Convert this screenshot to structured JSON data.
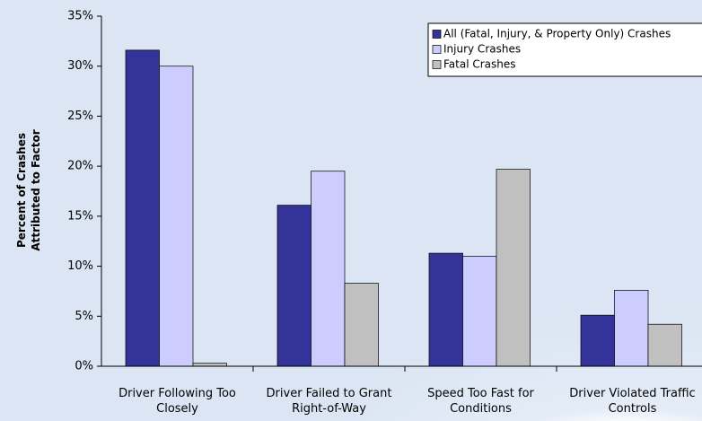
{
  "chart_data": {
    "type": "bar",
    "y_label": "Percent of Crashes Attributed to Factor",
    "categories": [
      "Driver Following Too Closely",
      "Driver Failed to Grant Right-of-Way",
      "Speed Too Fast for Conditions",
      "Driver Violated Traffic Controls"
    ],
    "series": [
      {
        "name": "All (Fatal, Injury, & Property Only) Crashes",
        "color": "#333399",
        "values": [
          31.6,
          16.1,
          11.3,
          5.1
        ]
      },
      {
        "name": "Injury Crashes",
        "color": "#ccccff",
        "values": [
          30.0,
          19.5,
          11.0,
          7.6
        ]
      },
      {
        "name": "Fatal Crashes",
        "color": "#c0c0c0",
        "values": [
          0.3,
          8.3,
          19.7,
          4.2
        ]
      }
    ],
    "ylim": [
      0,
      35
    ],
    "yticks": [
      {
        "value": 0,
        "label": "0%"
      },
      {
        "value": 5,
        "label": "5%"
      },
      {
        "value": 10,
        "label": "10%"
      },
      {
        "value": 15,
        "label": "15%"
      },
      {
        "value": 20,
        "label": "20%"
      },
      {
        "value": 25,
        "label": "25%"
      },
      {
        "value": 30,
        "label": "30%"
      },
      {
        "value": 35,
        "label": "35%"
      }
    ],
    "legend": "top-right"
  }
}
